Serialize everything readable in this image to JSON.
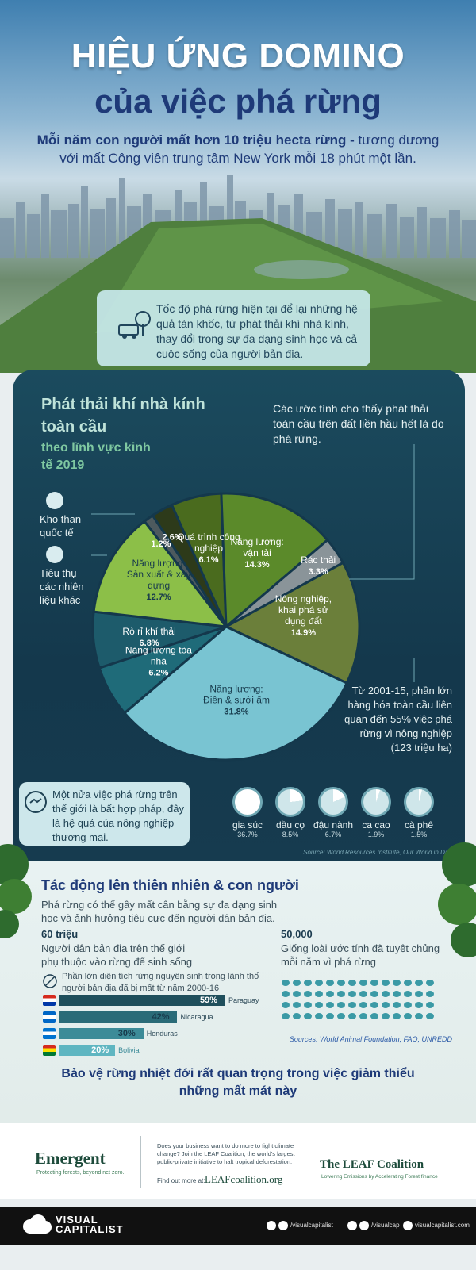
{
  "header": {
    "title_line1": "HIỆU ỨNG DOMINO",
    "title_line2": "của việc phá rừng",
    "subtitle_bold": "Mỗi năm con người mất hơn 10 triệu hecta rừng -",
    "subtitle_rest": " tương đương với mất Công viên trung tâm New York mỗi 18 phút một lần."
  },
  "intro": {
    "text": "Tốc độ phá rừng hiện tại để lại những hệ quả tàn khốc, từ phát thải khí nhà kính, thay đổi trong sự đa dạng sinh học và cả cuộc sống của người bản địa.",
    "icon": "deforestation-truck-icon"
  },
  "chart_data": {
    "type": "pie",
    "title": "Phát thải khí nhà kính toàn cầu",
    "subtitle": "theo lĩnh vực kinh tế 2019",
    "slices": [
      {
        "label": "Quá trình công nghiệp",
        "value": 6.1,
        "display": "6.1%",
        "color": "#4a6b1e"
      },
      {
        "label": "Năng lượng: vận tải",
        "value": 14.3,
        "display": "14.3%",
        "color": "#5b8a2a"
      },
      {
        "label": "Rác thải",
        "value": 3.3,
        "display": "3.3%",
        "color": "#8a9499"
      },
      {
        "label": "Nông nghiệp, khai phá sử dụng đất",
        "value": 14.9,
        "display": "14.9%",
        "color": "#6b7f3a"
      },
      {
        "label": "Năng lượng: Điện & sưởi ấm",
        "value": 31.8,
        "display": "31.8%",
        "color": "#79c4d2"
      },
      {
        "label": "Năng lượng tòa nhà",
        "value": 6.2,
        "display": "6.2%",
        "color": "#1f6b79"
      },
      {
        "label": "Rò rỉ khí thải",
        "value": 6.8,
        "display": "6.8%",
        "color": "#1d5b6b"
      },
      {
        "label": "Năng lượng: Sản xuất & xây dựng",
        "value": 12.7,
        "display": "12.7%",
        "color": "#8cbf48"
      },
      {
        "label": "Tiêu thụ các nhiên liệu khác",
        "value": 1.2,
        "display": "1.2%",
        "color": "#4d5a5e"
      },
      {
        "label": "Kho than quốc tế",
        "value": 2.6,
        "display": "2.6%",
        "color": "#2d3a1a"
      }
    ],
    "side_labels": {
      "coal": "Kho than quốc tế",
      "other_fuel": "Tiêu thụ các nhiên liệu khác"
    },
    "note_top": "Các ước tính cho thấy phát thải toàn cầu trên đất liền hầu hết là do phá rừng.",
    "note_bottom": "Từ 2001-15, phần lớn hàng hóa toàn cầu liên quan đến 55% việc phá rừng vì nông nghiệp (123 triệu ha)",
    "commodities": [
      {
        "name": "gia súc",
        "value": "36.7%",
        "pct": 36.7
      },
      {
        "name": "dầu cọ",
        "value": "8.5%",
        "pct": 8.5
      },
      {
        "name": "đậu nành",
        "value": "6.7%",
        "pct": 6.7
      },
      {
        "name": "ca cao",
        "value": "1.9%",
        "pct": 1.9
      },
      {
        "name": "cà phê",
        "value": "1.5%",
        "pct": 1.5
      }
    ],
    "illegal_note": "Một nửa việc phá rừng trên thế giới là bất hợp pháp, đây là hệ quả của nông nghiệp thương mại.",
    "source": "Source: World Resources Institute, Our World in Data"
  },
  "impact": {
    "title": "Tác động lên thiên nhiên & con người",
    "desc": "Phá rừng có thể gây mất cân bằng sự đa dạng sinh học và ảnh hưởng tiêu cực đến người dân bản địa.",
    "stat_a": "60 triệu",
    "stat_a_desc": "Người dân bản địa trên thế giới phụ thuộc vào rừng để sinh sống",
    "stat_b": "50,000",
    "stat_b_desc": "Giống loài ước tính đã tuyệt chủng mỗi năm vì phá rừng",
    "primary_note": "Phần lớn diện tích rừng nguyên sinh trong lãnh thổ người bản địa đã bị mất từ năm 2000-16",
    "bars": [
      {
        "country": "Paraguay",
        "value": 59,
        "display": "59%",
        "color": "#1f4f5c"
      },
      {
        "country": "Nicaragua",
        "value": 42,
        "display": "42%",
        "color": "#2a6b78"
      },
      {
        "country": "Honduras",
        "value": 30,
        "display": "30%",
        "color": "#3c8b98"
      },
      {
        "country": "Bolivia",
        "value": 20,
        "display": "20%",
        "color": "#5fb6c1"
      }
    ],
    "source": "Sources: World Animal Foundation, FAO, UNREDD",
    "protect": "Bảo vệ rừng nhiệt đới rất quan trọng trong việc giảm thiểu những mất mát này"
  },
  "footer": {
    "emergent_name": "Emergent",
    "emergent_tag": "Protecting forests, beyond net zero.",
    "partner_text": "Does your business want to do more to fight climate change? Join the LEAF Coalition, the world's largest public-private initiative to halt tropical deforestation.",
    "find_out": "Find out more at:",
    "leaf_url": "LEAFcoalition.org",
    "leaf_name": "The LEAF Coalition",
    "leaf_tag": "Lowering Emissions by Accelerating Forest finance",
    "vc_line1": "VISUAL",
    "vc_line2": "CAPITALIST",
    "social_1": "/visualcapitalist",
    "social_2": "/visualcap",
    "social_3": "visualcapitalist.com"
  }
}
